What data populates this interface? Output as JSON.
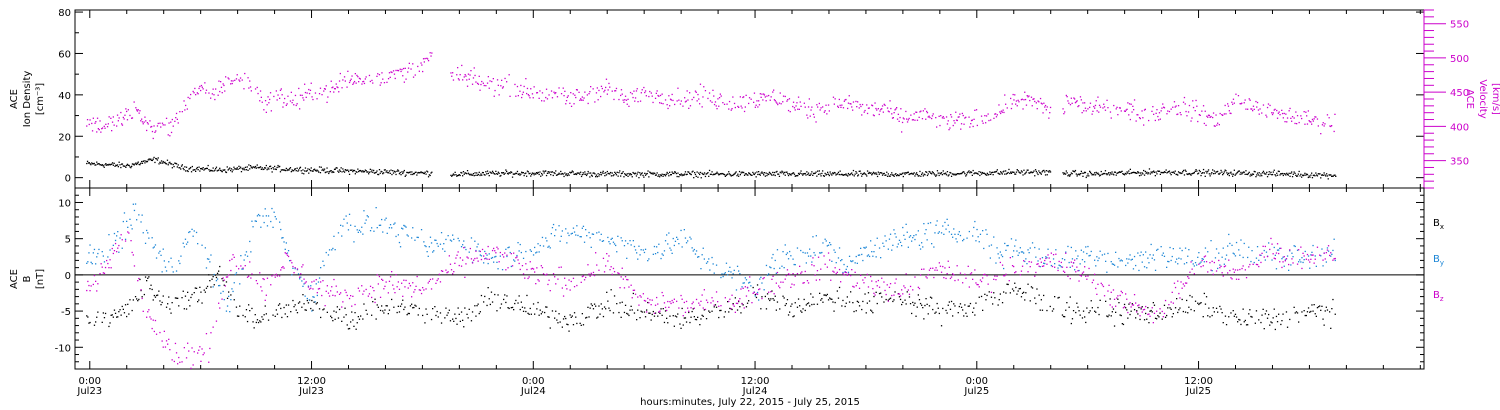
{
  "chart_data": [
    {
      "type": "scatter",
      "panel": "top",
      "ylabel_lines": [
        "ACE",
        "Ion Density",
        "[cm⁻³]"
      ],
      "y2label_lines": [
        "ACE",
        "Velocity",
        "[km/s]"
      ],
      "ylim": [
        -5,
        81
      ],
      "yticks": [
        0,
        20,
        40,
        60,
        80
      ],
      "y2lim": [
        310,
        570
      ],
      "y2ticks": [
        350,
        400,
        450,
        500,
        550
      ],
      "y2_minor_step": 10,
      "y2_color": "#cc00cc",
      "x_unit": "hours since 2015-07-22 00:00 UTC",
      "x_start": 23.8,
      "x_end": 91.4,
      "gaps": [
        [
          42.5,
          43.5
        ],
        [
          76.0,
          76.6
        ]
      ],
      "series": [
        {
          "color": "#000000",
          "axis": "left",
          "knots_x": [
            24,
            26,
            27.5,
            29,
            31,
            33,
            36,
            40,
            44,
            48,
            52,
            56,
            60,
            64,
            68,
            72,
            75,
            78,
            82,
            86,
            89,
            91
          ],
          "knots_y": [
            7,
            6,
            9,
            5,
            4,
            5,
            4,
            3,
            2,
            2.5,
            2,
            2,
            2,
            2,
            2,
            2.5,
            3,
            2,
            3,
            2.5,
            2,
            1.5
          ],
          "noise": 1.2
        },
        {
          "color": "#cc00cc",
          "axis": "right",
          "knots_x": [
            24,
            25,
            26.5,
            27.5,
            28.5,
            29.5,
            30,
            30.5,
            31.5,
            32.5,
            33.5,
            34,
            35,
            36,
            37,
            38,
            40,
            41,
            42,
            42.5,
            43.5,
            44,
            45,
            46,
            47,
            48,
            49,
            50,
            51,
            52,
            53,
            54,
            55,
            56,
            57,
            58,
            59,
            60,
            61,
            62,
            63,
            64,
            65,
            66,
            67,
            68,
            69,
            70,
            71,
            72,
            73,
            74,
            75,
            76,
            76.6,
            77,
            78,
            79,
            80,
            81,
            82,
            83,
            84,
            85,
            86,
            87,
            88,
            89,
            90,
            91
          ],
          "knots_y": [
            405,
            402,
            425,
            395,
            405,
            450,
            452,
            445,
            470,
            465,
            432,
            445,
            440,
            450,
            455,
            470,
            475,
            480,
            490,
            500,
            478,
            475,
            465,
            460,
            460,
            450,
            445,
            440,
            450,
            455,
            440,
            450,
            445,
            440,
            445,
            440,
            432,
            440,
            445,
            430,
            425,
            430,
            435,
            425,
            428,
            410,
            420,
            405,
            410,
            410,
            420,
            440,
            440,
            420,
            425,
            440,
            430,
            425,
            430,
            415,
            425,
            430,
            420,
            410,
            440,
            430,
            420,
            415,
            410,
            405
          ],
          "noise": 12
        }
      ]
    },
    {
      "type": "scatter",
      "panel": "bottom",
      "ylabel_lines": [
        "ACE",
        "B",
        "[nT]"
      ],
      "ylim": [
        -13,
        12
      ],
      "yticks": [
        -10,
        -5,
        0,
        5,
        10
      ],
      "zero_line": true,
      "x_unit": "hours since 2015-07-22 00:00 UTC",
      "x_start": 23.8,
      "x_end": 91.4,
      "series": [
        {
          "name": "B",
          "subscript": "x",
          "color": "#000000",
          "knots_x": [
            24,
            26,
            27,
            28,
            29,
            30,
            31,
            32,
            33,
            34,
            36,
            38,
            40,
            42,
            44,
            46,
            48,
            50,
            52,
            54,
            56,
            58,
            60,
            62,
            64,
            66,
            68,
            70,
            72,
            74,
            76,
            78,
            80,
            82,
            84,
            86,
            88,
            90,
            91
          ],
          "knots_y": [
            -6,
            -5,
            -1,
            -4,
            -3,
            -3,
            1,
            -5,
            -6,
            -5,
            -4,
            -6,
            -4,
            -5,
            -6,
            -3,
            -5,
            -6,
            -4,
            -5,
            -6,
            -5,
            -3,
            -4,
            -3,
            -4,
            -3,
            -5,
            -4,
            -2,
            -4,
            -5,
            -5,
            -5,
            -4,
            -6,
            -6,
            -5,
            -5
          ],
          "noise": 1.4
        },
        {
          "name": "B",
          "subscript": "y",
          "color": "#1c86d6",
          "knots_x": [
            24,
            25.5,
            26.5,
            27.5,
            28.5,
            29.5,
            30.5,
            31.5,
            33,
            34,
            35,
            36,
            37.5,
            39,
            40,
            42,
            44,
            46,
            48,
            50,
            52,
            54,
            56,
            58,
            60,
            61,
            62,
            64,
            65,
            66,
            68,
            70,
            72,
            73,
            74,
            76,
            78,
            80,
            82,
            84,
            86,
            88,
            90,
            91
          ],
          "knots_y": [
            2,
            5,
            9,
            3,
            1,
            6,
            1,
            -4,
            8,
            8,
            1,
            -3,
            7,
            7,
            7,
            4,
            5,
            2,
            4,
            6,
            5,
            3,
            5,
            1,
            -2,
            2,
            3,
            4,
            1,
            4,
            5,
            6,
            6,
            3,
            4,
            2,
            3,
            2,
            3,
            2,
            4,
            2,
            3,
            3
          ],
          "noise": 1.6
        },
        {
          "name": "B",
          "subscript": "z",
          "color": "#cc00cc",
          "knots_x": [
            24,
            25,
            26,
            27,
            28,
            28.5,
            29.5,
            30.5,
            31.5,
            32.5,
            33.5,
            34.5,
            35.5,
            36.5,
            38,
            40,
            42,
            44,
            46,
            48,
            50,
            52,
            54,
            56,
            58,
            60,
            62,
            64,
            66,
            68,
            70,
            72,
            74,
            76,
            78,
            80,
            82,
            84,
            86,
            88,
            89,
            90,
            91
          ],
          "knots_y": [
            -2,
            2,
            6,
            -5,
            -8,
            -11,
            -11,
            -10,
            2,
            1,
            -2,
            2,
            0,
            -2,
            -3,
            -1,
            -2,
            2,
            3,
            0,
            -1,
            2,
            -4,
            -4,
            -4,
            -2,
            0,
            1,
            -1,
            -2,
            1,
            -1,
            1,
            2,
            0,
            -4,
            -5,
            2,
            0,
            4,
            2,
            3,
            3
          ],
          "noise": 1.5
        }
      ]
    }
  ],
  "x_axis": {
    "tick_labels": [
      "0:00",
      "12:00",
      "0:00",
      "12:00",
      "0:00",
      "12:00"
    ],
    "date_labels": [
      "Jul23",
      "Jul23",
      "Jul24",
      "Jul24",
      "Jul25",
      "Jul25"
    ],
    "tick_hours": [
      24,
      36,
      48,
      60,
      72,
      84
    ],
    "minor_step_hours": 2,
    "xlim_hours": [
      23.2,
      96.2
    ],
    "xlabel": "hours:minutes, July 22, 2015 - July 25, 2015"
  }
}
